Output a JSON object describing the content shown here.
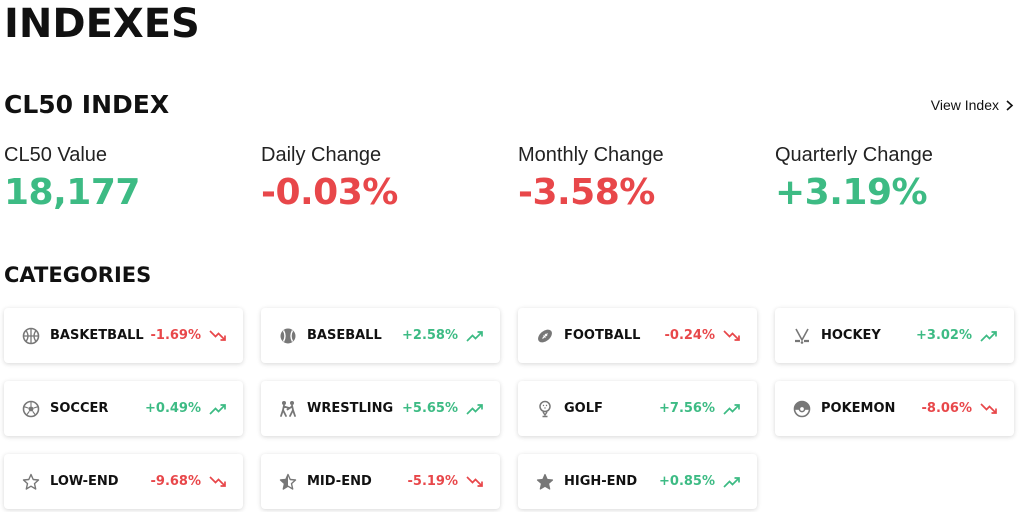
{
  "header": {
    "title": "INDEXES"
  },
  "index": {
    "title": "CL50 INDEX",
    "view_link": "View Index",
    "stats": [
      {
        "label": "CL50 Value",
        "value": "18,177",
        "tone": "pos"
      },
      {
        "label": "Daily Change",
        "value": "-0.03%",
        "tone": "neg"
      },
      {
        "label": "Monthly Change",
        "value": "-3.58%",
        "tone": "neg"
      },
      {
        "label": "Quarterly Change",
        "value": "+3.19%",
        "tone": "pos"
      }
    ]
  },
  "categories": {
    "title": "CATEGORIES",
    "items": [
      {
        "name": "BASKETBALL",
        "change": "-1.69%",
        "trend": "down",
        "icon": "basketball-icon"
      },
      {
        "name": "BASEBALL",
        "change": "+2.58%",
        "trend": "up",
        "icon": "baseball-icon"
      },
      {
        "name": "FOOTBALL",
        "change": "-0.24%",
        "trend": "down",
        "icon": "football-icon"
      },
      {
        "name": "HOCKEY",
        "change": "+3.02%",
        "trend": "up",
        "icon": "hockey-icon"
      },
      {
        "name": "SOCCER",
        "change": "+0.49%",
        "trend": "up",
        "icon": "soccer-icon"
      },
      {
        "name": "WRESTLING",
        "change": "+5.65%",
        "trend": "up",
        "icon": "wrestling-icon"
      },
      {
        "name": "GOLF",
        "change": "+7.56%",
        "trend": "up",
        "icon": "golf-icon"
      },
      {
        "name": "POKEMON",
        "change": "-8.06%",
        "trend": "down",
        "icon": "pokeball-icon"
      },
      {
        "name": "LOW-END",
        "change": "-9.68%",
        "trend": "down",
        "icon": "star-outline-icon"
      },
      {
        "name": "MID-END",
        "change": "-5.19%",
        "trend": "down",
        "icon": "star-half-icon"
      },
      {
        "name": "HIGH-END",
        "change": "+0.85%",
        "trend": "up",
        "icon": "star-filled-icon"
      }
    ]
  },
  "colors": {
    "positive": "#3dbb84",
    "negative": "#e8474a",
    "icon": "#8a8a8a"
  }
}
